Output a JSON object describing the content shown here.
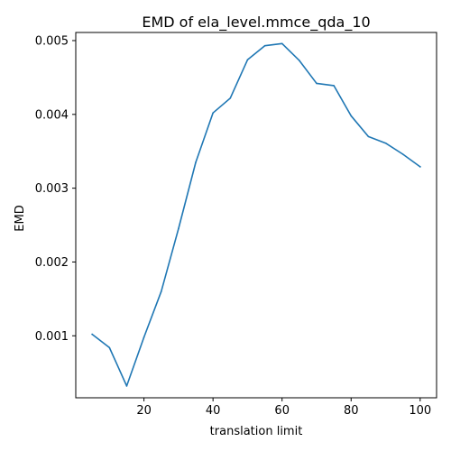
{
  "chart_data": {
    "type": "line",
    "title": "EMD of ela_level.mmce_qda_10",
    "xlabel": "translation limit",
    "ylabel": "EMD",
    "xlim": [
      0.25,
      104.75
    ],
    "ylim": [
      0.00016,
      0.00511
    ],
    "xticks": [
      20,
      40,
      60,
      80,
      100
    ],
    "xtick_labels": [
      "20",
      "40",
      "60",
      "80",
      "100"
    ],
    "yticks": [
      0.001,
      0.002,
      0.003,
      0.004,
      0.005
    ],
    "ytick_labels": [
      "0.001",
      "0.002",
      "0.003",
      "0.004",
      "0.005"
    ],
    "grid": false,
    "series": [
      {
        "color": "#1f77b4",
        "x": [
          5,
          10,
          15,
          20,
          25,
          30,
          35,
          40,
          45,
          50,
          55,
          60,
          65,
          70,
          75,
          80,
          85,
          90,
          95,
          100
        ],
        "y": [
          0.00102,
          0.00084,
          0.00032,
          0.00098,
          0.0016,
          0.00245,
          0.00335,
          0.00402,
          0.00422,
          0.00474,
          0.00493,
          0.00496,
          0.00473,
          0.00442,
          0.00439,
          0.00398,
          0.0037,
          0.00361,
          0.00346,
          0.00329
        ]
      }
    ]
  }
}
